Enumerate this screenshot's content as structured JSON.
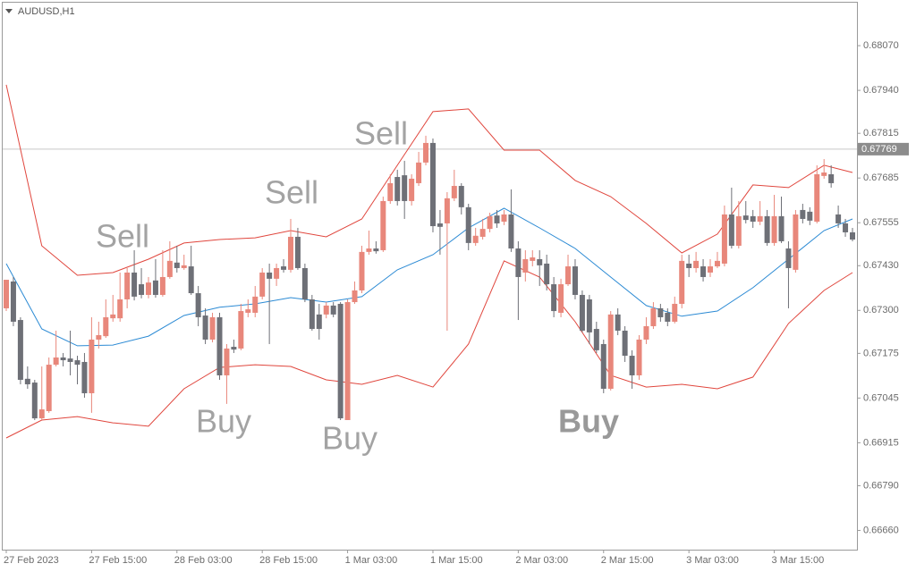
{
  "chart_data": {
    "type": "candlestick",
    "title": "AUDUSD,H1",
    "categories": [
      "27 Feb 2023",
      null,
      null,
      null,
      null,
      null,
      null,
      null,
      null,
      null,
      null,
      null,
      "27 Feb 15:00",
      null,
      null,
      null,
      null,
      null,
      null,
      null,
      null,
      null,
      null,
      null,
      "28 Feb 03:00",
      null,
      null,
      null,
      null,
      null,
      null,
      null,
      null,
      null,
      null,
      null,
      "28 Feb 15:00",
      null,
      null,
      null,
      null,
      null,
      null,
      null,
      null,
      null,
      null,
      null,
      "1 Mar 03:00",
      null,
      null,
      null,
      null,
      null,
      null,
      null,
      null,
      null,
      null,
      null,
      "1 Mar 15:00",
      null,
      null,
      null,
      null,
      null,
      null,
      null,
      null,
      null,
      null,
      null,
      "2 Mar 03:00",
      null,
      null,
      null,
      null,
      null,
      null,
      null,
      null,
      null,
      null,
      null,
      "2 Mar 15:00",
      null,
      null,
      null,
      null,
      null,
      null,
      null,
      null,
      null,
      null,
      null,
      "3 Mar 03:00",
      null,
      null,
      null,
      null,
      null,
      null,
      null,
      null,
      null,
      null,
      null,
      "3 Mar 15:00",
      null,
      null,
      null,
      null,
      null,
      null,
      null,
      null,
      null,
      null,
      null
    ],
    "open": [
      0.67306,
      0.67384,
      0.67272,
      0.67101,
      0.6709,
      0.66986,
      0.67007,
      0.67142,
      0.67163,
      0.6716,
      0.67155,
      0.6715,
      0.67059,
      0.67215,
      0.67225,
      0.67277,
      0.67277,
      0.67332,
      0.6741,
      0.67376,
      0.67345,
      0.67387,
      0.67345,
      0.67397,
      0.67439,
      0.67423,
      0.67428,
      0.6735,
      0.67285,
      0.67215,
      0.6728,
      0.67111,
      0.67194,
      0.67189,
      0.67293,
      0.67293,
      0.6734,
      0.6741,
      0.67392,
      0.67428,
      0.67418,
      0.67514,
      0.67423,
      0.67332,
      0.67288,
      0.67288,
      0.67314,
      0.67319,
      0.66981,
      0.67324,
      0.67358,
      0.6747,
      0.6748,
      0.67475,
      0.67618,
      0.67688,
      0.67693,
      0.67618,
      0.6767,
      0.6773,
      0.67787,
      0.67553,
      0.67553,
      0.67626,
      0.67662,
      0.676,
      0.67496,
      0.67514,
      0.67537,
      0.67576,
      0.67558,
      0.67579,
      0.6748,
      0.6741,
      0.67444,
      0.67449,
      0.67436,
      0.67376,
      0.67293,
      0.67376,
      0.67428,
      0.67345,
      0.67332,
      0.67246,
      0.67202,
      0.67072,
      0.67288,
      0.67241,
      0.67168,
      0.67111,
      0.67215,
      0.67254,
      0.67306,
      0.67293,
      0.67267,
      0.67319,
      0.67436,
      0.67423,
      0.67428,
      0.6741,
      0.67428,
      0.67436,
      0.67579,
      0.67488,
      0.67576,
      0.67574,
      0.67558,
      0.67574,
      0.67496,
      0.67574,
      0.6748,
      0.67418,
      0.67592,
      0.67587,
      0.67558,
      0.67691,
      0.67696,
      0.67579,
      0.67553,
      0.67527
    ],
    "high": [
      0.67389,
      0.67397,
      0.6728,
      0.67137,
      0.67098,
      0.67137,
      0.67163,
      0.67241,
      0.67176,
      0.67241,
      0.67168,
      0.67176,
      0.6728,
      0.67267,
      0.67332,
      0.67345,
      0.6741,
      0.67423,
      0.67475,
      0.67423,
      0.67397,
      0.67449,
      0.67475,
      0.67501,
      0.67488,
      0.67462,
      0.67488,
      0.67371,
      0.67306,
      0.67293,
      0.67293,
      0.67202,
      0.67215,
      0.67319,
      0.67332,
      0.67371,
      0.67423,
      0.67436,
      0.67436,
      0.67449,
      0.67566,
      0.6754,
      0.67436,
      0.67345,
      0.67319,
      0.67324,
      0.67324,
      0.67324,
      0.67332,
      0.67384,
      0.67488,
      0.67532,
      0.67501,
      0.67631,
      0.67696,
      0.67709,
      0.67735,
      0.67696,
      0.67761,
      0.67808,
      0.678,
      0.67592,
      0.67644,
      0.67709,
      0.6767,
      0.6761,
      0.6754,
      0.67566,
      0.67584,
      0.67592,
      0.67592,
      0.67652,
      0.67501,
      0.67475,
      0.67475,
      0.67475,
      0.67462,
      0.67397,
      0.67392,
      0.67462,
      0.67449,
      0.67358,
      0.67345,
      0.67267,
      0.67215,
      0.67298,
      0.67306,
      0.67254,
      0.67184,
      0.67228,
      0.6728,
      0.67324,
      0.67319,
      0.67306,
      0.6734,
      0.67462,
      0.67462,
      0.6747,
      0.67449,
      0.67449,
      0.6747,
      0.67605,
      0.67657,
      0.67618,
      0.67618,
      0.67592,
      0.67618,
      0.67592,
      0.67636,
      0.67631,
      0.67501,
      0.67592,
      0.6761,
      0.676,
      0.67722,
      0.6774,
      0.67722,
      0.67605,
      0.67566,
      0.6754
    ],
    "low": [
      0.67298,
      0.67254,
      0.67085,
      0.67072,
      0.66981,
      0.66981,
      0.67002,
      0.67137,
      0.67137,
      0.67111,
      0.67085,
      0.67046,
      0.67002,
      0.67189,
      0.6722,
      0.67267,
      0.67267,
      0.67306,
      0.67329,
      0.67335,
      0.67335,
      0.67337,
      0.6734,
      0.67392,
      0.6741,
      0.67418,
      0.67345,
      0.67254,
      0.67202,
      0.67207,
      0.67098,
      0.67028,
      0.67176,
      0.67184,
      0.6728,
      0.6728,
      0.67332,
      0.67202,
      0.67371,
      0.6741,
      0.6741,
      0.67418,
      0.67324,
      0.67241,
      0.67215,
      0.67277,
      0.6728,
      0.66981,
      0.66981,
      0.67319,
      0.6735,
      0.67462,
      0.67465,
      0.6747,
      0.6761,
      0.67605,
      0.67566,
      0.67605,
      0.67662,
      0.67722,
      0.67527,
      0.67462,
      0.67241,
      0.67618,
      0.67579,
      0.67475,
      0.67488,
      0.67506,
      0.67527,
      0.6754,
      0.67548,
      0.6747,
      0.67272,
      0.67384,
      0.67428,
      0.67371,
      0.67358,
      0.6728,
      0.6728,
      0.67371,
      0.67332,
      0.67236,
      0.67202,
      0.67176,
      0.67059,
      0.67067,
      0.67228,
      0.6715,
      0.67072,
      0.67098,
      0.67202,
      0.67246,
      0.67267,
      0.67254,
      0.67262,
      0.67306,
      0.67397,
      0.6741,
      0.67384,
      0.67397,
      0.67423,
      0.67428,
      0.6748,
      0.6748,
      0.67553,
      0.6754,
      0.67548,
      0.67488,
      0.67488,
      0.67496,
      0.67306,
      0.6741,
      0.67553,
      0.67548,
      0.67553,
      0.67683,
      0.67657,
      0.6754,
      0.67514,
      0.67501
    ],
    "close": [
      0.67389,
      0.67267,
      0.67098,
      0.67085,
      0.66986,
      0.67012,
      0.67142,
      0.67163,
      0.67155,
      0.6715,
      0.67142,
      0.67059,
      0.67215,
      0.67228,
      0.6728,
      0.67288,
      0.67332,
      0.6741,
      0.6734,
      0.67345,
      0.67381,
      0.67345,
      0.67397,
      0.67444,
      0.67423,
      0.67431,
      0.6735,
      0.6728,
      0.67215,
      0.6728,
      0.67111,
      0.67189,
      0.67186,
      0.67298,
      0.67303,
      0.6734,
      0.6741,
      0.67392,
      0.67423,
      0.67418,
      0.67514,
      0.67423,
      0.67332,
      0.67246,
      0.67246,
      0.67314,
      0.67288,
      0.66986,
      0.67324,
      0.67358,
      0.6747,
      0.6748,
      0.67472,
      0.67618,
      0.6767,
      0.67618,
      0.67618,
      0.67683,
      0.6773,
      0.67787,
      0.67545,
      0.67543,
      0.67626,
      0.67662,
      0.676,
      0.67496,
      0.67517,
      0.67537,
      0.67574,
      0.67553,
      0.67579,
      0.6748,
      0.67397,
      0.67449,
      0.67454,
      0.67431,
      0.67376,
      0.67298,
      0.67376,
      0.67428,
      0.67345,
      0.67241,
      0.67236,
      0.67184,
      0.67072,
      0.67288,
      0.67241,
      0.67168,
      0.67111,
      0.67215,
      0.67254,
      0.67306,
      0.6728,
      0.67267,
      0.67319,
      0.67444,
      0.67423,
      0.67444,
      0.67397,
      0.67428,
      0.67444,
      0.67579,
      0.67488,
      0.67574,
      0.67563,
      0.67558,
      0.67574,
      0.67496,
      0.67574,
      0.67501,
      0.67423,
      0.67579,
      0.67566,
      0.67561,
      0.67696,
      0.67701,
      0.6767,
      0.67553,
      0.67527,
      0.67506
    ],
    "up_color": "#e8877b",
    "down_color": "#6e7077",
    "bands": [
      {
        "color": "#e0463d",
        "x": [
          0,
          5,
          10,
          15,
          20,
          25,
          30,
          35,
          40,
          45,
          50,
          55,
          60,
          65,
          70,
          75,
          80,
          85,
          90,
          95,
          100,
          105,
          110,
          115,
          119
        ],
        "values": [
          0.67956,
          0.67488,
          0.67402,
          0.6741,
          0.67449,
          0.67496,
          0.67506,
          0.67511,
          0.67532,
          0.67514,
          0.67566,
          0.67722,
          0.67878,
          0.67886,
          0.67766,
          0.67766,
          0.67678,
          0.67631,
          0.67553,
          0.67467,
          0.67522,
          0.67665,
          0.67657,
          0.67722,
          0.67701
        ]
      },
      {
        "color": "#2b8ad4",
        "x": [
          0,
          5,
          10,
          15,
          20,
          25,
          30,
          35,
          40,
          45,
          50,
          55,
          60,
          65,
          70,
          75,
          80,
          85,
          90,
          95,
          100,
          105,
          110,
          115,
          119
        ],
        "values": [
          0.67436,
          0.67246,
          0.67197,
          0.67199,
          0.67225,
          0.67285,
          0.67309,
          0.67319,
          0.67337,
          0.67324,
          0.6734,
          0.67418,
          0.67462,
          0.6754,
          0.67597,
          0.6754,
          0.6748,
          0.67397,
          0.67314,
          0.67283,
          0.67298,
          0.67366,
          0.67449,
          0.67532,
          0.67566
        ]
      },
      {
        "color": "#e0463d",
        "x": [
          0,
          5,
          10,
          15,
          20,
          25,
          30,
          35,
          40,
          45,
          50,
          55,
          60,
          65,
          70,
          75,
          80,
          85,
          90,
          95,
          100,
          105,
          110,
          115,
          119
        ],
        "values": [
          0.66929,
          0.66981,
          0.66991,
          0.66973,
          0.66963,
          0.67072,
          0.67134,
          0.67142,
          0.67137,
          0.67098,
          0.67085,
          0.67111,
          0.67077,
          0.67202,
          0.67444,
          0.67397,
          0.67267,
          0.67111,
          0.67077,
          0.67085,
          0.67072,
          0.67106,
          0.67262,
          0.67358,
          0.6741
        ]
      }
    ],
    "ylim": [
      0.66604,
      0.68195
    ],
    "yticks": [
      {
        "value": 0.6807,
        "label": "0.68070"
      },
      {
        "value": 0.6794,
        "label": "0.67940"
      },
      0.67815,
      0.67685,
      0.67555,
      {
        "value": 0.6743,
        "label": "0.67430"
      },
      {
        "value": 0.673,
        "label": "0.67300"
      },
      0.67175,
      0.67045,
      0.66915,
      {
        "value": 0.6679,
        "label": "0.66790"
      },
      {
        "value": 0.6666,
        "label": "0.66660"
      }
    ],
    "current_price": 0.67769,
    "annotations": [
      "Sell",
      "Sell",
      "Sell",
      "Buy",
      "Buy",
      "Buy"
    ]
  }
}
